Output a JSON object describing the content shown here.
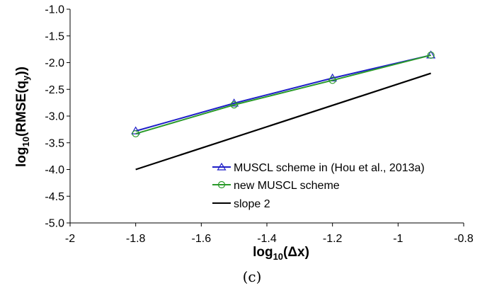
{
  "chart_data": {
    "type": "line",
    "caption": "(c)",
    "xlabel_main": "log",
    "xlabel_sub": "10",
    "xlabel_rest": "(Δx)",
    "ylabel_main": "log",
    "ylabel_sub": "10",
    "ylabel_mid": "(RMSE(q",
    "ylabel_sub2": "y",
    "ylabel_end": "))",
    "xlim": [
      -2,
      -0.8
    ],
    "ylim": [
      -5,
      -1
    ],
    "x_ticks": [
      "-2",
      "-1.8",
      "-1.6",
      "-1.4",
      "-1.2",
      "-1",
      "-0.8"
    ],
    "y_ticks": [
      "-1.0",
      "-1.5",
      "-2.0",
      "-2.5",
      "-3.0",
      "-3.5",
      "-4.0",
      "-4.5",
      "-5.0"
    ],
    "legend_position": "bottom-right",
    "series": [
      {
        "name": "MUSCL scheme in (Hou et al., 2013a)",
        "color": "#1f1fc8",
        "marker": "triangle",
        "x": [
          -1.8,
          -1.5,
          -1.2,
          -0.9
        ],
        "y": [
          -3.28,
          -2.76,
          -2.29,
          -1.86
        ]
      },
      {
        "name": "new MUSCL scheme",
        "color": "#2a9a2a",
        "marker": "circle",
        "x": [
          -1.8,
          -1.5,
          -1.2,
          -0.9
        ],
        "y": [
          -3.33,
          -2.79,
          -2.33,
          -1.86
        ]
      },
      {
        "name": "slope 2",
        "color": "#000000",
        "marker": "none",
        "x": [
          -1.8,
          -0.9
        ],
        "y": [
          -4.0,
          -2.2
        ]
      }
    ]
  }
}
